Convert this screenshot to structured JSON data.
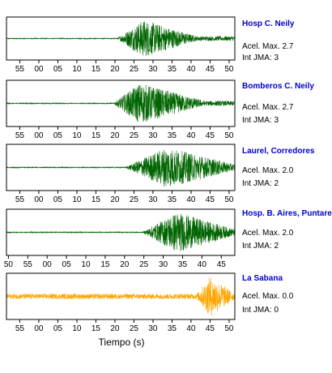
{
  "chart_data": {
    "type": "line",
    "xlabel": "Tiempo (s)",
    "panels": [
      {
        "station": "Hosp C. Neily",
        "accel_label": "Acel. Max. 2.7",
        "int_label": "Int JMA: 3",
        "color": "#006400",
        "tick_labels": [
          "55",
          "00",
          "05",
          "10",
          "15",
          "20",
          "25",
          "30",
          "35",
          "40",
          "45",
          "50"
        ],
        "first_tick_seconds": 55,
        "xlim_seconds": [
          51.5,
          111.5
        ],
        "ylim": [
          -1,
          1
        ],
        "noise_level": 0.02,
        "onset_seconds": 80.5,
        "peak_seconds": 87.5,
        "end_seconds": 101,
        "peak_amplitude": 0.95
      },
      {
        "station": "Bomberos C. Neily",
        "accel_label": "Acel. Max. 2.7",
        "int_label": "Int JMA: 3",
        "color": "#006400",
        "tick_labels": [
          "55",
          "00",
          "05",
          "10",
          "15",
          "20",
          "25",
          "30",
          "35",
          "40",
          "45",
          "50"
        ],
        "first_tick_seconds": 55,
        "xlim_seconds": [
          51.5,
          111.5
        ],
        "ylim": [
          -1,
          1
        ],
        "noise_level": 0.02,
        "onset_seconds": 79.5,
        "peak_seconds": 86.5,
        "end_seconds": 103,
        "peak_amplitude": 0.95
      },
      {
        "station": "Laurel, Corredores",
        "accel_label": "Acel. Max. 2.0",
        "int_label": "Int JMA: 2",
        "color": "#006400",
        "tick_labels": [
          "55",
          "00",
          "05",
          "10",
          "15",
          "20",
          "25",
          "30",
          "35",
          "40",
          "45",
          "50"
        ],
        "first_tick_seconds": 55,
        "xlim_seconds": [
          51.5,
          111.5
        ],
        "ylim": [
          -1,
          1
        ],
        "noise_level": 0.02,
        "onset_seconds": 82.5,
        "peak_seconds": 93.5,
        "end_seconds": 111.5,
        "peak_amplitude": 0.95
      },
      {
        "station": "Hosp. B. Aires, Puntare",
        "accel_label": "Acel. Max. 2.0",
        "int_label": "Int JMA: 2",
        "color": "#006400",
        "tick_labels": [
          "50",
          "55",
          "00",
          "05",
          "10",
          "15",
          "20",
          "25",
          "30",
          "35",
          "40",
          "45"
        ],
        "first_tick_seconds": 50,
        "xlim_seconds": [
          49.5,
          108.5
        ],
        "ylim": [
          -1,
          1
        ],
        "noise_level": 0.02,
        "onset_seconds": 84.5,
        "peak_seconds": 93.5,
        "end_seconds": 108.5,
        "peak_amplitude": 0.95
      },
      {
        "station": "La Sabana",
        "accel_label": "Acel. Max. 0.0",
        "int_label": "Int JMA: 0",
        "color": "#ffa500",
        "tick_labels": [
          "55",
          "00",
          "05",
          "10",
          "15",
          "20",
          "25",
          "30",
          "35",
          "40",
          "45",
          "50"
        ],
        "first_tick_seconds": 55,
        "xlim_seconds": [
          51.5,
          111.5
        ],
        "ylim": [
          -1,
          1
        ],
        "noise_level": 0.12,
        "onset_seconds": 101,
        "peak_seconds": 105,
        "end_seconds": 111.5,
        "peak_amplitude": 0.95
      }
    ]
  }
}
